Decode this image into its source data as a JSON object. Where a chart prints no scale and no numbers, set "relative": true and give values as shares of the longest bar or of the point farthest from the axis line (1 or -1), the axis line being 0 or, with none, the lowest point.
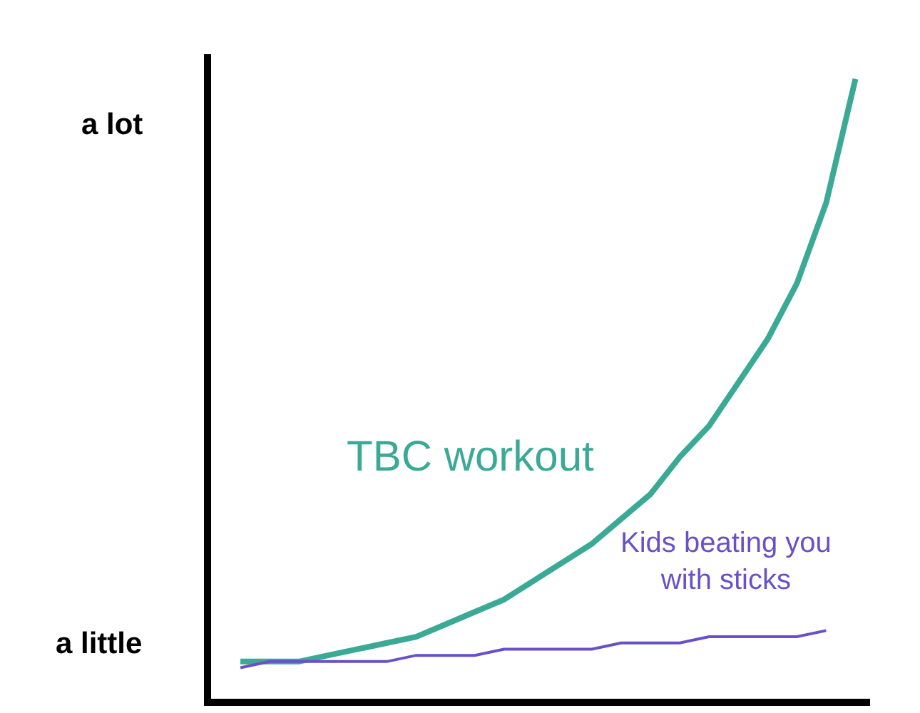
{
  "chart_data": {
    "type": "line",
    "relative": true,
    "categories": [
      null,
      null,
      null,
      null,
      null,
      null,
      null,
      null,
      null,
      null,
      null,
      null,
      null,
      null,
      null,
      null,
      null,
      null,
      null,
      null,
      null,
      null
    ],
    "series": [
      {
        "name": "TBC workout",
        "color": "#3aa996",
        "values": [
          0.06,
          0.06,
          0.06,
          0.07,
          0.08,
          0.09,
          0.1,
          0.12,
          0.14,
          0.16,
          0.19,
          0.22,
          0.25,
          0.29,
          0.33,
          0.39,
          0.44,
          0.51,
          0.58,
          0.67,
          0.8,
          1.0
        ]
      },
      {
        "name": "Kids beating you with sticks",
        "color": "#6a50c8",
        "values": [
          0.05,
          0.06,
          0.06,
          0.06,
          0.06,
          0.06,
          0.07,
          0.07,
          0.07,
          0.08,
          0.08,
          0.08,
          0.08,
          0.09,
          0.09,
          0.09,
          0.1,
          0.1,
          0.1,
          0.1,
          0.11,
          null
        ]
      }
    ],
    "annotations": [
      "a lot",
      "a little"
    ],
    "legend": false,
    "marker": "none",
    "line_style": "solid"
  }
}
